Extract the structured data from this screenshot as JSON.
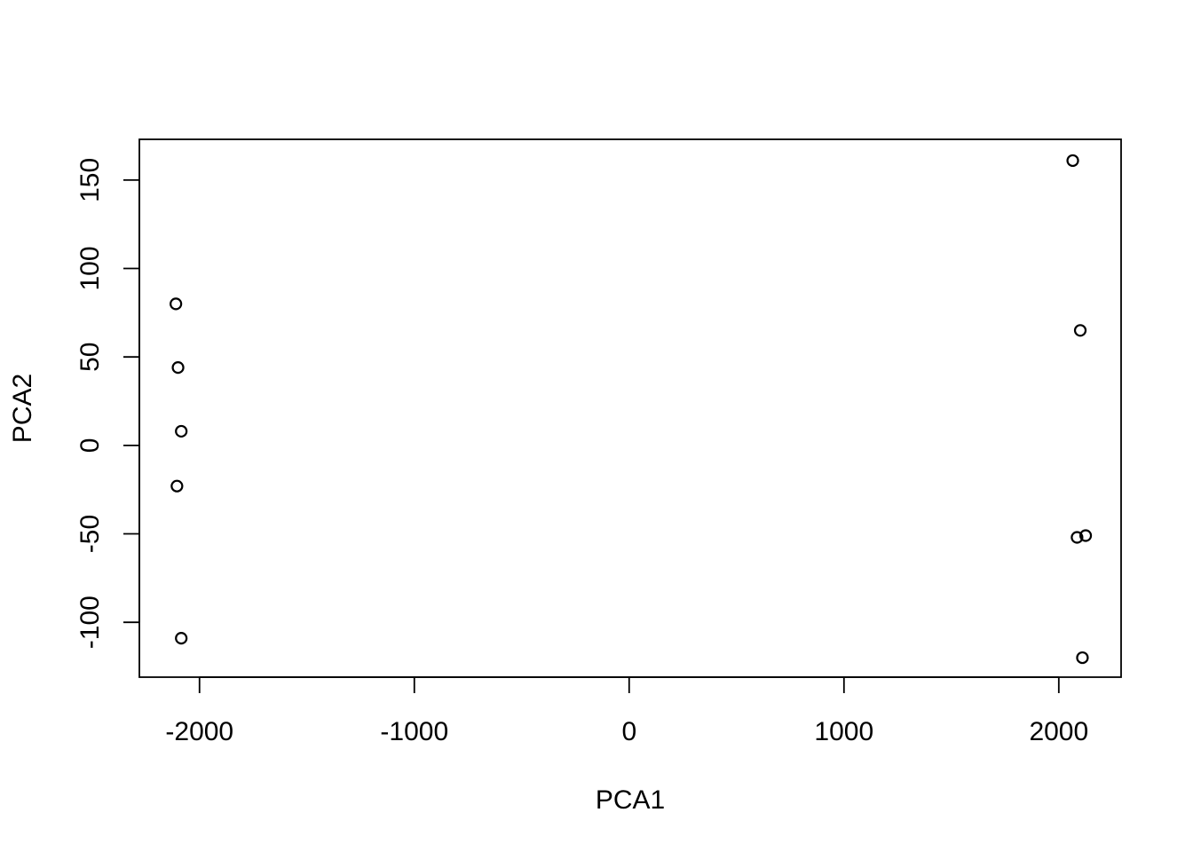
{
  "chart_data": {
    "type": "scatter",
    "title": "",
    "xlabel": "PCA1",
    "ylabel": "PCA2",
    "xlim": [
      -2280,
      2290
    ],
    "ylim": [
      -131,
      173
    ],
    "xticks": [
      -2000,
      -1000,
      0,
      1000,
      2000
    ],
    "yticks": [
      -100,
      -50,
      0,
      50,
      100,
      150
    ],
    "grid": false,
    "legend": "none",
    "colors": {
      "points": "#000000",
      "frame": "#000000",
      "background": "#ffffff"
    },
    "marker": "open-circle",
    "series": [
      {
        "x": [
          -2110,
          -2100,
          -2085,
          -2105,
          -2085,
          2065,
          2100,
          2085,
          2125,
          2110
        ],
        "y": [
          80,
          44,
          8,
          -23,
          -109,
          161,
          65,
          -52,
          -51,
          -120
        ]
      }
    ]
  }
}
